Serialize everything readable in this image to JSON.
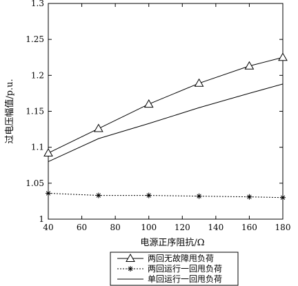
{
  "chart_data": {
    "type": "line",
    "title": "",
    "xlabel": "电源正序阻抗/Ω",
    "ylabel": "过电压幅值/p.u.",
    "x": [
      40,
      70,
      100,
      130,
      160,
      180
    ],
    "xlim": [
      40,
      180
    ],
    "ylim": [
      1.0,
      1.3
    ],
    "xticks": [
      "40",
      "60",
      "80",
      "100",
      "120",
      "140",
      "160",
      "180"
    ],
    "yticks": [
      "1",
      "1.05",
      "1.1",
      "1.15",
      "1.2",
      "1.25",
      "1.3"
    ],
    "grid": false,
    "legend_position": "bottom",
    "series": [
      {
        "name": "两回无故障甩负荷",
        "values": [
          1.092,
          1.126,
          1.16,
          1.189,
          1.213,
          1.225
        ],
        "line_style": "solid",
        "marker": "triangle",
        "color": "#000000"
      },
      {
        "name": "两回运行一回甩负荷",
        "values": [
          1.036,
          1.033,
          1.033,
          1.032,
          1.031,
          1.03
        ],
        "line_style": "dotted",
        "marker": "star",
        "color": "#000000"
      },
      {
        "name": "单回运行一回甩负荷",
        "values": [
          1.08,
          1.112,
          1.133,
          1.155,
          1.175,
          1.188
        ],
        "line_style": "solid",
        "marker": "none",
        "color": "#000000"
      }
    ]
  }
}
